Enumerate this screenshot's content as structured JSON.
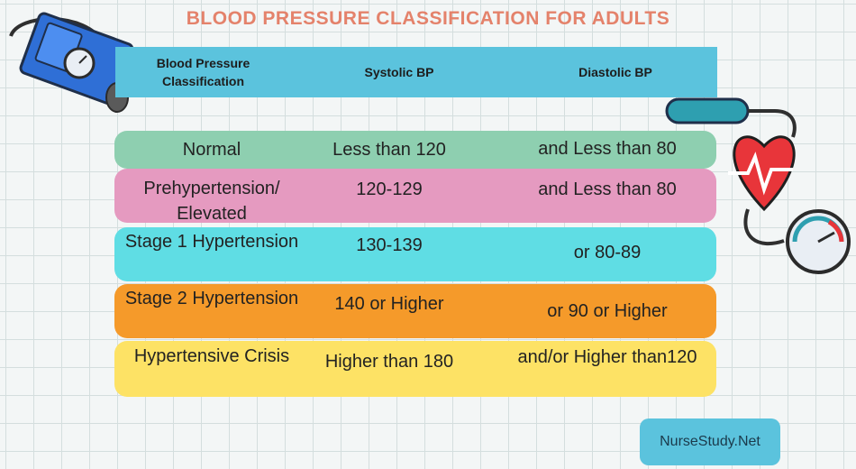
{
  "title": "BLOOD PRESSURE CLASSIFICATION FOR ADULTS",
  "header": {
    "classification": "Blood Pressure Classification",
    "systolic": "Systolic BP",
    "diastolic": "Diastolic BP"
  },
  "rows": [
    {
      "classification": "Normal",
      "systolic": "Less than 120",
      "diastolic": "and Less than 80",
      "color": "#8ecfb0"
    },
    {
      "classification": "Prehypertension/ Elevated",
      "systolic": "120-129",
      "diastolic": "and Less than 80",
      "color": "#e59ac0"
    },
    {
      "classification": "Stage 1 Hypertension",
      "systolic": "130-139",
      "diastolic": "or 80-89",
      "color": "#5fdde4"
    },
    {
      "classification": "Stage 2 Hypertension",
      "systolic": "140 or Higher",
      "diastolic": "or 90 or Higher",
      "color": "#f59a2a"
    },
    {
      "classification": "Hypertensive Crisis",
      "systolic": "Higher than 180",
      "diastolic": "and/or Higher than120",
      "color": "#fde265"
    }
  ],
  "brand": "NurseStudy.Net",
  "icons": {
    "left": "blood-pressure-cuff-icon",
    "right": "heart-gauge-icon"
  }
}
